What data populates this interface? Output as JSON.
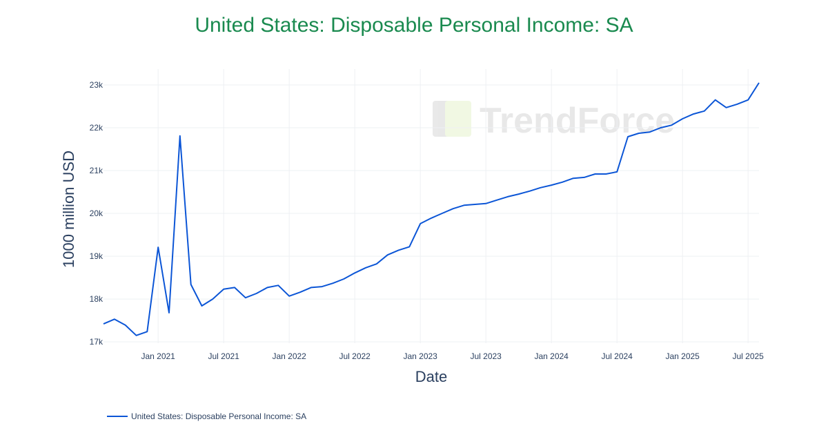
{
  "watermark": "TrendForce",
  "chart_data": {
    "type": "line",
    "title": "United States: Disposable Personal Income: SA",
    "xlabel": "Date",
    "ylabel": "1000 million USD",
    "color": "#0b55d6",
    "title_color": "#1a8a4f",
    "grid": true,
    "legend_position": "bottom-left",
    "ylim": [
      16970,
      23370
    ],
    "xlim": [
      "2020-08",
      "2025-08"
    ],
    "y_ticks": [
      {
        "v": 17000,
        "label": "17k"
      },
      {
        "v": 18000,
        "label": "18k"
      },
      {
        "v": 19000,
        "label": "19k"
      },
      {
        "v": 20000,
        "label": "20k"
      },
      {
        "v": 21000,
        "label": "21k"
      },
      {
        "v": 22000,
        "label": "22k"
      },
      {
        "v": 23000,
        "label": "23k"
      }
    ],
    "x_ticks": [
      {
        "v": "2021-01",
        "label": "Jan 2021"
      },
      {
        "v": "2021-07",
        "label": "Jul 2021"
      },
      {
        "v": "2022-01",
        "label": "Jan 2022"
      },
      {
        "v": "2022-07",
        "label": "Jul 2022"
      },
      {
        "v": "2023-01",
        "label": "Jan 2023"
      },
      {
        "v": "2023-07",
        "label": "Jul 2023"
      },
      {
        "v": "2024-01",
        "label": "Jan 2024"
      },
      {
        "v": "2024-07",
        "label": "Jul 2024"
      },
      {
        "v": "2025-01",
        "label": "Jan 2025"
      },
      {
        "v": "2025-07",
        "label": "Jul 2025"
      }
    ],
    "series": [
      {
        "name": "United States: Disposable Personal Income: SA",
        "x": [
          "2020-08",
          "2020-09",
          "2020-10",
          "2020-11",
          "2020-12",
          "2021-01",
          "2021-02",
          "2021-03",
          "2021-04",
          "2021-05",
          "2021-06",
          "2021-07",
          "2021-08",
          "2021-09",
          "2021-10",
          "2021-11",
          "2021-12",
          "2022-01",
          "2022-02",
          "2022-03",
          "2022-04",
          "2022-05",
          "2022-06",
          "2022-07",
          "2022-08",
          "2022-09",
          "2022-10",
          "2022-11",
          "2022-12",
          "2023-01",
          "2023-02",
          "2023-03",
          "2023-04",
          "2023-05",
          "2023-06",
          "2023-07",
          "2023-08",
          "2023-09",
          "2023-10",
          "2023-11",
          "2023-12",
          "2024-01",
          "2024-02",
          "2024-03",
          "2024-04",
          "2024-05",
          "2024-06",
          "2024-07",
          "2024-08",
          "2024-09",
          "2024-10",
          "2024-11",
          "2024-12",
          "2025-01",
          "2025-02",
          "2025-03",
          "2025-04",
          "2025-05",
          "2025-06",
          "2025-07",
          "2025-08"
        ],
        "y": [
          17420,
          17530,
          17390,
          17150,
          17240,
          19210,
          17680,
          21810,
          18340,
          17840,
          18000,
          18230,
          18270,
          18030,
          18130,
          18270,
          18320,
          18070,
          18160,
          18270,
          18290,
          18370,
          18470,
          18610,
          18730,
          18820,
          19030,
          19140,
          19220,
          19760,
          19890,
          20000,
          20110,
          20190,
          20210,
          20230,
          20310,
          20390,
          20450,
          20520,
          20600,
          20660,
          20730,
          20820,
          20840,
          20920,
          20920,
          20970,
          21790,
          21870,
          21900,
          22000,
          22060,
          22210,
          22320,
          22390,
          22650,
          22470,
          22550,
          22650,
          23050
        ]
      }
    ]
  }
}
